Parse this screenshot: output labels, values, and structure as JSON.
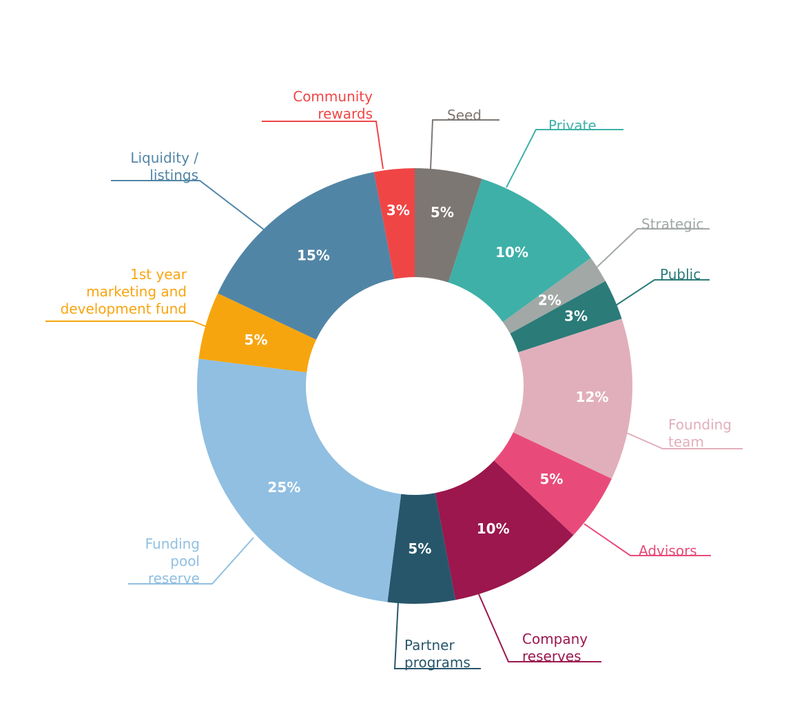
{
  "chart_data": {
    "type": "pie",
    "donut": true,
    "title": "",
    "unit": "%",
    "start": "top, clockwise",
    "slices": [
      {
        "label": [
          "Seed"
        ],
        "value": 5,
        "display": "5%",
        "color": "#7d7773"
      },
      {
        "label": [
          "Private"
        ],
        "value": 10,
        "display": "10%",
        "color": "#3eb0a8"
      },
      {
        "label": [
          "Strategic"
        ],
        "value": 2,
        "display": "2%",
        "color": "#a1a8a6"
      },
      {
        "label": [
          "Public"
        ],
        "value": 3,
        "display": "3%",
        "color": "#2b7b78"
      },
      {
        "label": [
          "Founding",
          "team"
        ],
        "value": 12,
        "display": "12%",
        "color": "#e1afbb"
      },
      {
        "label": [
          "Advisors"
        ],
        "value": 5,
        "display": "5%",
        "color": "#e84b7a"
      },
      {
        "label": [
          "Company",
          "reserves"
        ],
        "value": 10,
        "display": "10%",
        "color": "#9b174d"
      },
      {
        "label": [
          "Partner",
          "programs"
        ],
        "value": 5,
        "display": "5%",
        "color": "#27566b"
      },
      {
        "label": [
          "Funding",
          "pool",
          "reserve"
        ],
        "value": 25,
        "display": "25%",
        "color": "#90bfe1"
      },
      {
        "label": [
          "1st year",
          "marketing and",
          "development fund"
        ],
        "value": 5,
        "display": "5%",
        "color": "#f7a50f"
      },
      {
        "label": [
          "Liquidity /",
          "listings"
        ],
        "value": 15,
        "display": "15%",
        "color": "#5185a6"
      },
      {
        "label": [
          "Community",
          "rewards"
        ],
        "value": 3,
        "display": "3%",
        "color": "#f04545"
      }
    ]
  }
}
